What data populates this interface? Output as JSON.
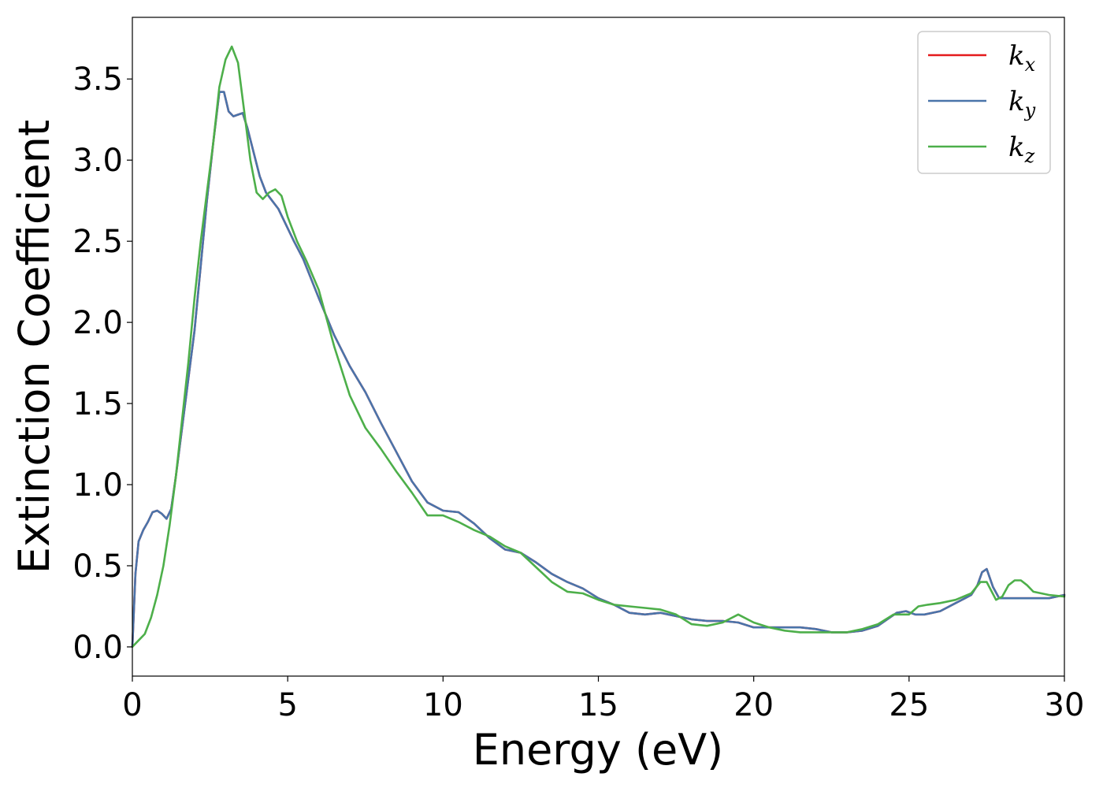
{
  "chart_data": {
    "type": "line",
    "title": "",
    "xlabel": "Energy (eV)",
    "ylabel": "Extinction Coefficient",
    "xlim": [
      0,
      30
    ],
    "ylim": [
      -0.18,
      3.88
    ],
    "xticks": [
      0,
      5,
      10,
      15,
      20,
      25,
      30
    ],
    "xtick_labels": [
      "0",
      "5",
      "10",
      "15",
      "20",
      "25",
      "30"
    ],
    "yticks": [
      0.0,
      0.5,
      1.0,
      1.5,
      2.0,
      2.5,
      3.0,
      3.5
    ],
    "ytick_labels": [
      "0.0",
      "0.5",
      "1.0",
      "1.5",
      "2.0",
      "2.5",
      "3.0",
      "3.5"
    ],
    "grid": false,
    "legend_position": "top-right",
    "series": [
      {
        "name": "k_x",
        "legend_base": "k",
        "legend_sub": "x",
        "color": "#e41a1c",
        "x": [
          0,
          0.1,
          0.2,
          0.35,
          0.5,
          0.65,
          0.8,
          0.95,
          1.1,
          1.25,
          1.4,
          1.6,
          1.8,
          2.0,
          2.2,
          2.4,
          2.6,
          2.8,
          2.95,
          3.1,
          3.25,
          3.4,
          3.55,
          3.7,
          3.9,
          4.1,
          4.3,
          4.5,
          4.7,
          4.9,
          5.2,
          5.5,
          6.0,
          6.5,
          7.0,
          7.5,
          8.0,
          8.5,
          9.0,
          9.5,
          10.0,
          10.5,
          11.0,
          11.5,
          12.0,
          12.5,
          13.0,
          13.5,
          14.0,
          14.5,
          15.0,
          15.5,
          16.0,
          16.5,
          17.0,
          17.5,
          18.0,
          18.5,
          19.0,
          19.5,
          20.0,
          20.5,
          21.0,
          21.5,
          22.0,
          22.5,
          23.0,
          23.5,
          24.0,
          24.3,
          24.6,
          24.9,
          25.2,
          25.5,
          26.0,
          26.5,
          26.8,
          27.0,
          27.2,
          27.35,
          27.5,
          27.7,
          27.9,
          28.2,
          28.5,
          29.0,
          29.5,
          30.0
        ],
        "y": [
          0.0,
          0.45,
          0.65,
          0.72,
          0.77,
          0.83,
          0.84,
          0.82,
          0.79,
          0.85,
          1.05,
          1.35,
          1.65,
          1.95,
          2.35,
          2.75,
          3.1,
          3.42,
          3.42,
          3.3,
          3.27,
          3.28,
          3.29,
          3.2,
          3.05,
          2.9,
          2.8,
          2.75,
          2.7,
          2.62,
          2.5,
          2.39,
          2.15,
          1.92,
          1.73,
          1.57,
          1.38,
          1.2,
          1.02,
          0.89,
          0.84,
          0.83,
          0.76,
          0.67,
          0.6,
          0.58,
          0.52,
          0.45,
          0.4,
          0.36,
          0.3,
          0.26,
          0.21,
          0.2,
          0.21,
          0.19,
          0.17,
          0.16,
          0.16,
          0.15,
          0.12,
          0.12,
          0.12,
          0.12,
          0.11,
          0.09,
          0.09,
          0.1,
          0.13,
          0.17,
          0.21,
          0.22,
          0.2,
          0.2,
          0.22,
          0.27,
          0.3,
          0.32,
          0.38,
          0.46,
          0.48,
          0.37,
          0.3,
          0.3,
          0.3,
          0.3,
          0.3,
          0.32
        ]
      },
      {
        "name": "k_y",
        "legend_base": "k",
        "legend_sub": "y",
        "color": "#4a74aa",
        "x": [
          0,
          0.1,
          0.2,
          0.35,
          0.5,
          0.65,
          0.8,
          0.95,
          1.1,
          1.25,
          1.4,
          1.6,
          1.8,
          2.0,
          2.2,
          2.4,
          2.6,
          2.8,
          2.95,
          3.1,
          3.25,
          3.4,
          3.55,
          3.7,
          3.9,
          4.1,
          4.3,
          4.5,
          4.7,
          4.9,
          5.2,
          5.5,
          6.0,
          6.5,
          7.0,
          7.5,
          8.0,
          8.5,
          9.0,
          9.5,
          10.0,
          10.5,
          11.0,
          11.5,
          12.0,
          12.5,
          13.0,
          13.5,
          14.0,
          14.5,
          15.0,
          15.5,
          16.0,
          16.5,
          17.0,
          17.5,
          18.0,
          18.5,
          19.0,
          19.5,
          20.0,
          20.5,
          21.0,
          21.5,
          22.0,
          22.5,
          23.0,
          23.5,
          24.0,
          24.3,
          24.6,
          24.9,
          25.2,
          25.5,
          26.0,
          26.5,
          26.8,
          27.0,
          27.2,
          27.35,
          27.5,
          27.7,
          27.9,
          28.2,
          28.5,
          29.0,
          29.5,
          30.0
        ],
        "y": [
          0.0,
          0.45,
          0.65,
          0.72,
          0.77,
          0.83,
          0.84,
          0.82,
          0.79,
          0.85,
          1.05,
          1.35,
          1.65,
          1.95,
          2.35,
          2.75,
          3.1,
          3.42,
          3.42,
          3.3,
          3.27,
          3.28,
          3.29,
          3.2,
          3.05,
          2.9,
          2.8,
          2.75,
          2.7,
          2.62,
          2.5,
          2.39,
          2.15,
          1.92,
          1.73,
          1.57,
          1.38,
          1.2,
          1.02,
          0.89,
          0.84,
          0.83,
          0.76,
          0.67,
          0.6,
          0.58,
          0.52,
          0.45,
          0.4,
          0.36,
          0.3,
          0.26,
          0.21,
          0.2,
          0.21,
          0.19,
          0.17,
          0.16,
          0.16,
          0.15,
          0.12,
          0.12,
          0.12,
          0.12,
          0.11,
          0.09,
          0.09,
          0.1,
          0.13,
          0.17,
          0.21,
          0.22,
          0.2,
          0.2,
          0.22,
          0.27,
          0.3,
          0.32,
          0.38,
          0.46,
          0.48,
          0.37,
          0.3,
          0.3,
          0.3,
          0.3,
          0.3,
          0.32
        ]
      },
      {
        "name": "k_z",
        "legend_base": "k",
        "legend_sub": "z",
        "color": "#4daf4a",
        "x": [
          0,
          0.2,
          0.4,
          0.6,
          0.8,
          1.0,
          1.2,
          1.4,
          1.6,
          1.8,
          2.0,
          2.2,
          2.4,
          2.6,
          2.8,
          3.0,
          3.2,
          3.4,
          3.6,
          3.8,
          4.0,
          4.2,
          4.4,
          4.6,
          4.8,
          5.0,
          5.3,
          5.6,
          6.0,
          6.5,
          7.0,
          7.5,
          8.0,
          8.5,
          9.0,
          9.5,
          10.0,
          10.5,
          11.0,
          11.5,
          12.0,
          12.5,
          13.0,
          13.5,
          14.0,
          14.5,
          15.0,
          15.5,
          16.0,
          16.5,
          17.0,
          17.5,
          18.0,
          18.5,
          19.0,
          19.5,
          20.0,
          20.5,
          21.0,
          21.5,
          22.0,
          22.5,
          23.0,
          23.5,
          24.0,
          24.5,
          25.0,
          25.3,
          25.6,
          26.0,
          26.5,
          27.0,
          27.3,
          27.5,
          27.8,
          28.0,
          28.2,
          28.4,
          28.6,
          28.8,
          29.0,
          29.5,
          30.0
        ],
        "y": [
          0.0,
          0.04,
          0.08,
          0.18,
          0.32,
          0.5,
          0.75,
          1.05,
          1.4,
          1.75,
          2.15,
          2.5,
          2.8,
          3.1,
          3.45,
          3.62,
          3.7,
          3.6,
          3.3,
          3.0,
          2.8,
          2.76,
          2.8,
          2.82,
          2.78,
          2.65,
          2.5,
          2.38,
          2.2,
          1.85,
          1.55,
          1.35,
          1.22,
          1.08,
          0.95,
          0.81,
          0.81,
          0.77,
          0.72,
          0.68,
          0.62,
          0.58,
          0.49,
          0.4,
          0.34,
          0.33,
          0.29,
          0.26,
          0.25,
          0.24,
          0.23,
          0.2,
          0.14,
          0.13,
          0.15,
          0.2,
          0.15,
          0.12,
          0.1,
          0.09,
          0.09,
          0.09,
          0.09,
          0.11,
          0.14,
          0.2,
          0.2,
          0.25,
          0.26,
          0.27,
          0.29,
          0.33,
          0.4,
          0.4,
          0.29,
          0.31,
          0.38,
          0.41,
          0.41,
          0.38,
          0.34,
          0.32,
          0.31
        ]
      }
    ]
  }
}
